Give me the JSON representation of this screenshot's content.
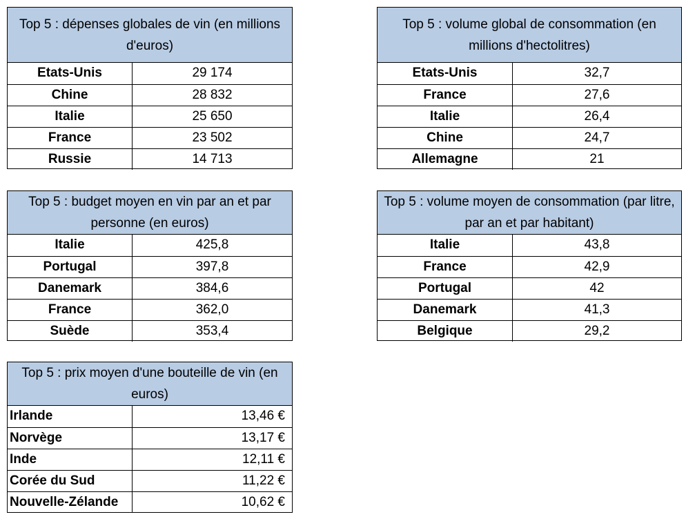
{
  "tables": [
    {
      "title": "Top 5 : dépenses globales de vin (en millions d'euros)",
      "rows": [
        {
          "label": "Etats-Unis",
          "value": "29 174"
        },
        {
          "label": "Chine",
          "value": "28 832"
        },
        {
          "label": "Italie",
          "value": "25 650"
        },
        {
          "label": "France",
          "value": "23 502"
        },
        {
          "label": "Russie",
          "value": "14 713"
        }
      ]
    },
    {
      "title": "Top 5 : volume global de consommation (en millions d'hectolitres)",
      "rows": [
        {
          "label": "Etats-Unis",
          "value": "32,7"
        },
        {
          "label": "France",
          "value": "27,6"
        },
        {
          "label": "Italie",
          "value": "26,4"
        },
        {
          "label": "Chine",
          "value": "24,7"
        },
        {
          "label": "Allemagne",
          "value": "21"
        }
      ]
    },
    {
      "title": "Top 5 : budget moyen en vin par an et par personne (en euros)",
      "rows": [
        {
          "label": "Italie",
          "value": "425,8"
        },
        {
          "label": "Portugal",
          "value": "397,8"
        },
        {
          "label": "Danemark",
          "value": "384,6"
        },
        {
          "label": "France",
          "value": "362,0"
        },
        {
          "label": "Suède",
          "value": "353,4"
        }
      ]
    },
    {
      "title": "Top 5 : volume moyen de consommation (par litre, par an et par habitant)",
      "rows": [
        {
          "label": "Italie",
          "value": "43,8"
        },
        {
          "label": "France",
          "value": "42,9"
        },
        {
          "label": "Portugal",
          "value": "42"
        },
        {
          "label": "Danemark",
          "value": "41,3"
        },
        {
          "label": "Belgique",
          "value": "29,2"
        }
      ]
    },
    {
      "title": "Top 5 : prix moyen d'une bouteille de vin (en euros)",
      "rows": [
        {
          "label": "Irlande",
          "value": "13,46 €"
        },
        {
          "label": "Norvège",
          "value": "13,17 €"
        },
        {
          "label": "Inde",
          "value": "12,11 €"
        },
        {
          "label": "Corée du Sud",
          "value": "11,22 €"
        },
        {
          "label": "Nouvelle-Zélande",
          "value": "10,62 €"
        }
      ]
    }
  ]
}
